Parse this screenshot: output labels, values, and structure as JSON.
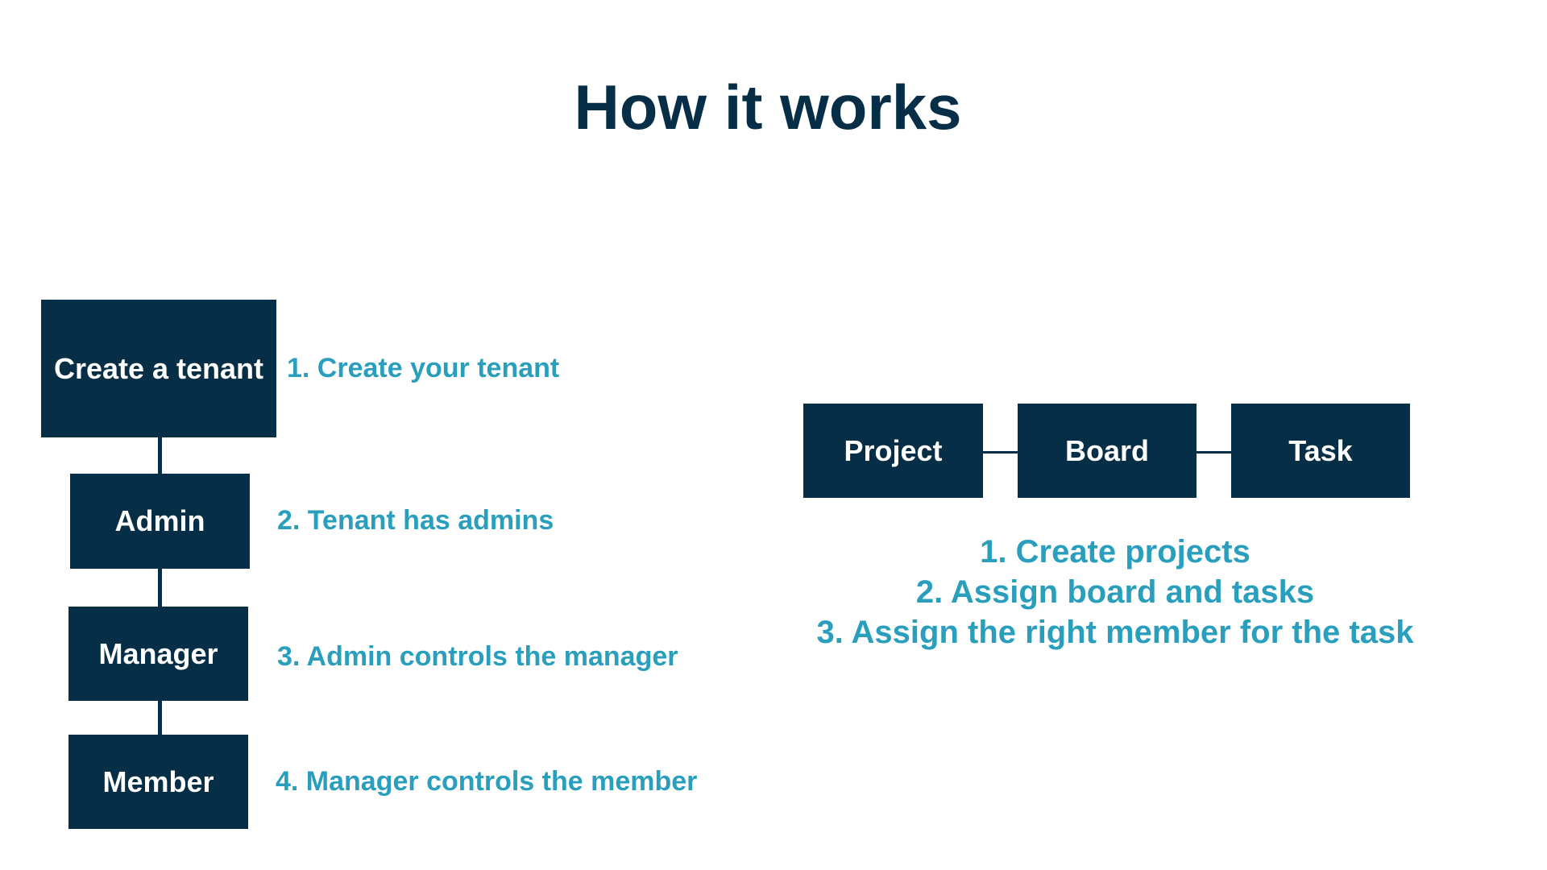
{
  "title": "How it works",
  "hierarchy": {
    "nodes": [
      "Create a tenant",
      "Admin",
      "Manager",
      "Member"
    ],
    "steps": [
      "1. Create your tenant",
      "2. Tenant has admins",
      "3. Admin controls the manager",
      "4. Manager controls the member"
    ]
  },
  "workflow": {
    "nodes": [
      "Project",
      "Board",
      "Task"
    ],
    "steps": [
      "1. Create projects",
      "2. Assign board and tasks",
      "3. Assign the right member for the task"
    ]
  },
  "colors": {
    "box": "#062f47",
    "step_text": "#2a9fbd",
    "title": "#062f47"
  }
}
